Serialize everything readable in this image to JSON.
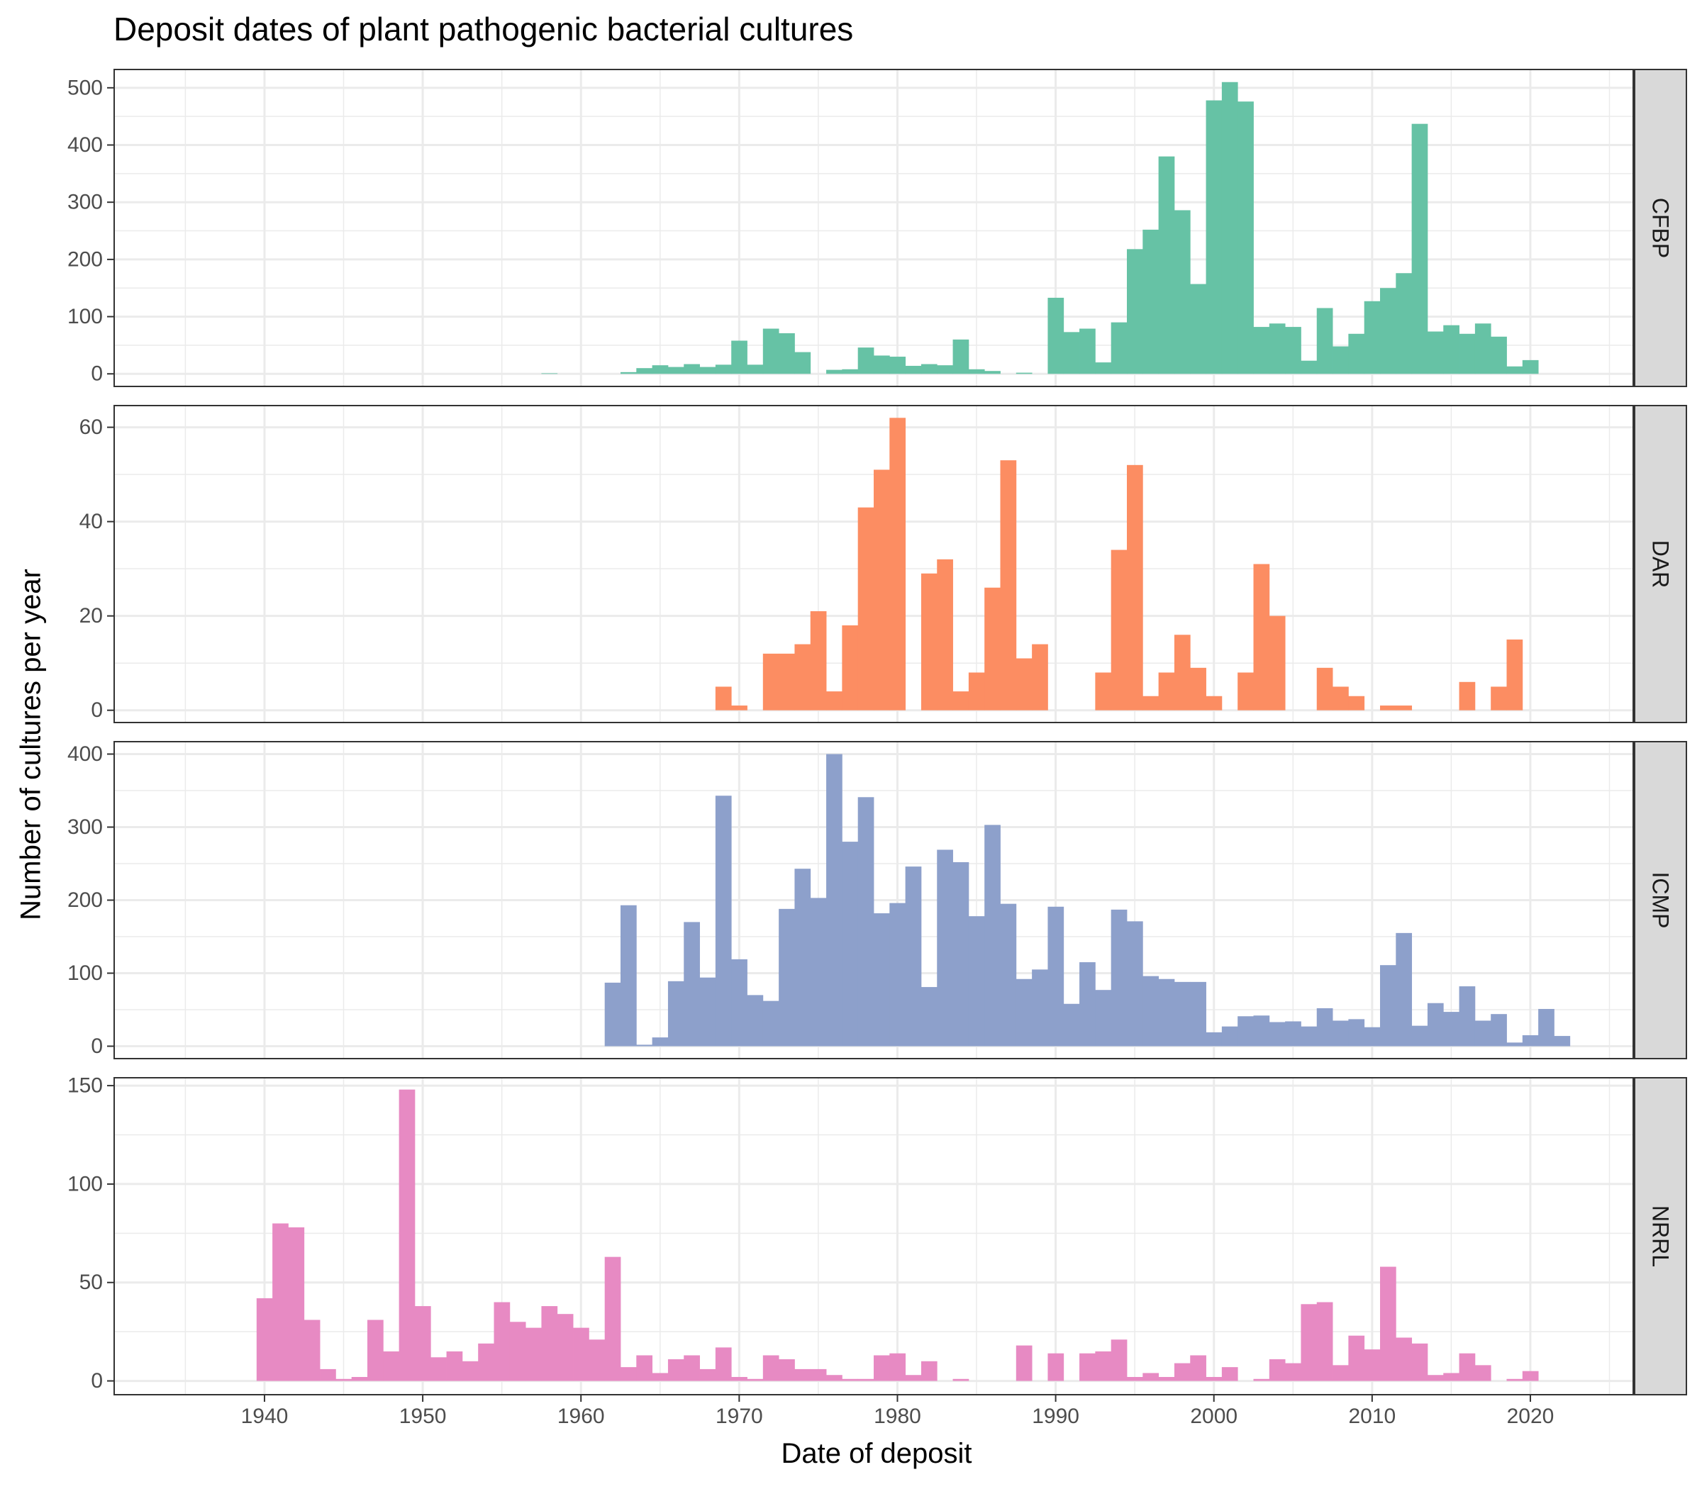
{
  "chart_data": {
    "type": "bar",
    "title": "Deposit dates of plant pathogenic bacterial cultures",
    "xlabel": "Date of deposit",
    "ylabel": "Number of cultures per year",
    "xlim": [
      1930.5,
      2026.5
    ],
    "x_ticks": [
      1940,
      1950,
      1960,
      1970,
      1980,
      1990,
      2000,
      2010,
      2020
    ],
    "grid": true,
    "legend": "none",
    "colors": {
      "CFBP": "#66C2A5",
      "DAR": "#FC8D62",
      "ICMP": "#8DA0CB",
      "NRRL": "#E78AC3",
      "strip_bg": "#D9D9D9",
      "grid": "#EBEBEB"
    },
    "panels": [
      {
        "name": "CFBP",
        "ylim": [
          -22,
          532
        ],
        "y_ticks": [
          0,
          100,
          200,
          300,
          400,
          500
        ],
        "x_start": 1958,
        "values": [
          1,
          0,
          0,
          0,
          0,
          3,
          10,
          15,
          12,
          17,
          12,
          16,
          58,
          16,
          79,
          71,
          38,
          0,
          7,
          8,
          46,
          32,
          30,
          14,
          17,
          15,
          60,
          8,
          5,
          0,
          2,
          0,
          133,
          73,
          79,
          20,
          90,
          218,
          252,
          380,
          286,
          157,
          478,
          510,
          476,
          82,
          88,
          82,
          23,
          115,
          48,
          70,
          127,
          150,
          176,
          437,
          74,
          85,
          70,
          88,
          65,
          13,
          24
        ]
      },
      {
        "name": "DAR",
        "ylim": [
          -2.6,
          64.6
        ],
        "y_ticks": [
          0,
          20,
          40,
          60
        ],
        "x_start": 1969,
        "values": [
          5,
          1,
          0,
          12,
          12,
          14,
          21,
          4,
          18,
          43,
          51,
          62,
          0,
          29,
          32,
          4,
          8,
          26,
          53,
          11,
          14,
          0,
          0,
          0,
          8,
          34,
          52,
          3,
          8,
          16,
          9,
          3,
          0,
          8,
          31,
          20,
          0,
          0,
          9,
          5,
          3,
          0,
          1,
          1,
          0,
          0,
          0,
          6,
          0,
          5,
          15
        ]
      },
      {
        "name": "ICMP",
        "ylim": [
          -17,
          417
        ],
        "y_ticks": [
          0,
          100,
          200,
          300,
          400
        ],
        "x_start": 1962,
        "values": [
          87,
          193,
          2,
          12,
          89,
          170,
          94,
          343,
          119,
          70,
          62,
          188,
          243,
          203,
          400,
          280,
          341,
          182,
          196,
          246,
          81,
          269,
          252,
          178,
          303,
          195,
          92,
          105,
          191,
          58,
          115,
          77,
          187,
          171,
          96,
          92,
          88,
          88,
          19,
          27,
          41,
          42,
          33,
          34,
          27,
          52,
          35,
          37,
          26,
          111,
          155,
          28,
          59,
          47,
          82,
          35,
          44,
          5,
          15,
          51,
          14
        ]
      },
      {
        "name": "NRRL",
        "ylim": [
          -7,
          154
        ],
        "y_ticks": [
          0,
          50,
          100,
          150
        ],
        "x_start": 1940,
        "values": [
          42,
          80,
          78,
          31,
          6,
          1,
          2,
          31,
          15,
          148,
          38,
          12,
          15,
          10,
          19,
          40,
          30,
          27,
          38,
          34,
          27,
          21,
          63,
          7,
          13,
          4,
          11,
          13,
          6,
          17,
          2,
          1,
          13,
          11,
          6,
          6,
          3,
          1,
          1,
          13,
          14,
          3,
          10,
          0,
          1,
          0,
          0,
          0,
          18,
          0,
          14,
          0,
          14,
          15,
          21,
          2,
          4,
          2,
          9,
          13,
          2,
          7,
          0,
          1,
          11,
          9,
          39,
          40,
          8,
          23,
          16,
          58,
          22,
          19,
          3,
          4,
          14,
          8,
          0,
          1,
          5
        ]
      }
    ]
  }
}
